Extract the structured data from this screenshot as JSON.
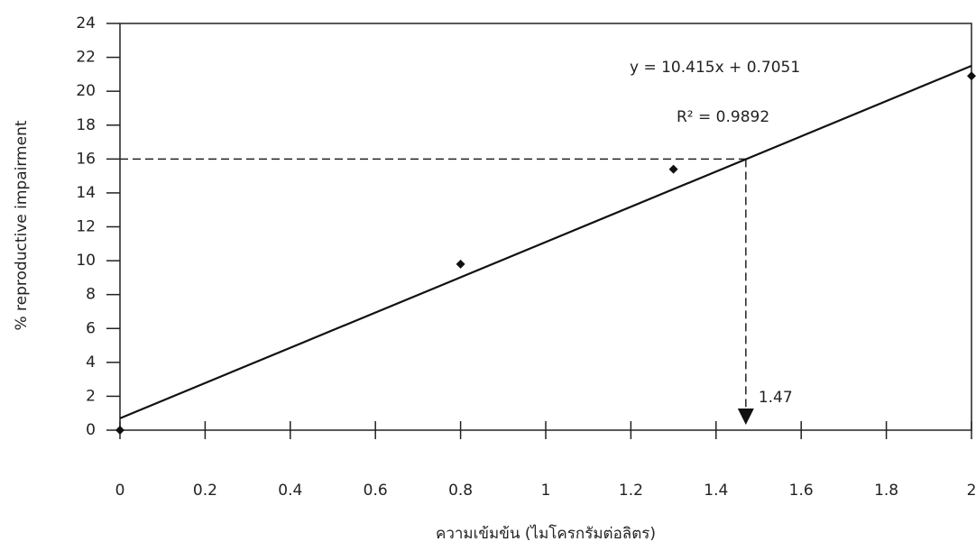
{
  "chart_data": {
    "type": "scatter",
    "x_label": "ความเข้มข้น (ไมโครกรัมต่อลิตร)",
    "y_label": "% reproductive impairment",
    "x": [
      0,
      0.8,
      1.3,
      2
    ],
    "values": [
      0,
      9.8,
      15.4,
      20.9
    ],
    "color": "#111111",
    "trendline": {
      "x": [
        0,
        2
      ],
      "values": [
        0.7,
        21.5
      ],
      "equation": "y = 10.415x + 0.7051",
      "r_squared": "R² = 0.9892"
    },
    "readout": {
      "x": 1.47,
      "y": 16
    },
    "xlim": [
      0,
      2
    ],
    "xticks": [
      0,
      0.2,
      0.4,
      0.6,
      0.8,
      1,
      1.2,
      1.4,
      1.6,
      1.8,
      2
    ],
    "ylim": [
      0,
      24
    ],
    "yticks": [
      0,
      2,
      4,
      6,
      8,
      10,
      12,
      14,
      16,
      18,
      20,
      22,
      24
    ]
  }
}
